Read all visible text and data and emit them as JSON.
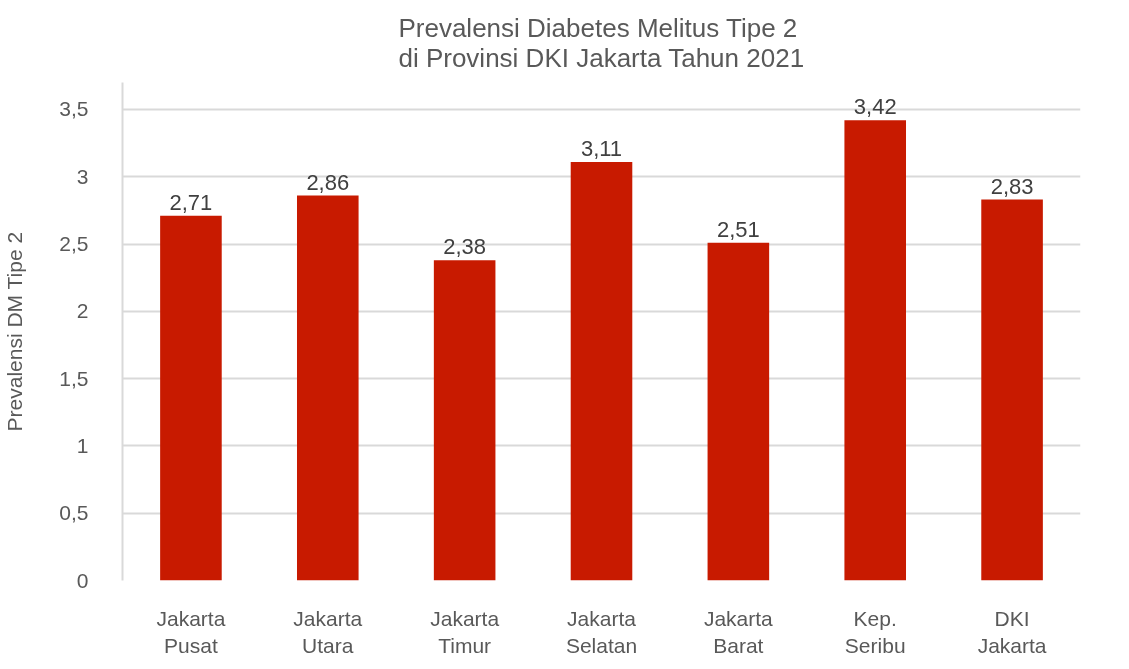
{
  "chart_data": {
    "type": "bar",
    "title": "Prevalensi Diabetes Melitus Tipe 2\ndi Provinsi DKI Jakarta Tahun 2021",
    "ylabel": "Prevalensi DM Tipe 2",
    "categories": [
      "Jakarta Pusat",
      "Jakarta Utara",
      "Jakarta Timur",
      "Jakarta Selatan",
      "Jakarta Barat",
      "Kep. Seribu",
      "DKI Jakarta"
    ],
    "values": [
      2.71,
      2.86,
      2.38,
      3.11,
      2.51,
      3.42,
      2.83
    ],
    "value_labels": [
      "2,71",
      "2,86",
      "2,38",
      "3,11",
      "2,51",
      "3,42",
      "2,83"
    ],
    "color": "#c81a00",
    "ylim": [
      0,
      3.7
    ],
    "yticks": [
      0,
      {
        "value": 0.5,
        "label": "0,5"
      },
      1,
      {
        "value": 1.5,
        "label": "1,5"
      },
      2,
      {
        "value": 2.5,
        "label": "2,5"
      },
      3,
      {
        "value": 3.5,
        "label": "3,5"
      }
    ],
    "grid": "y"
  }
}
